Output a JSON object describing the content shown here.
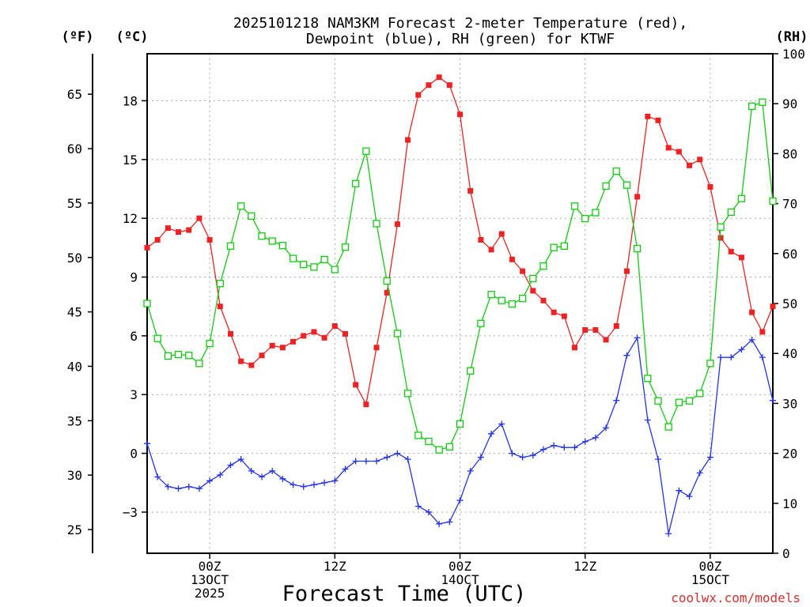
{
  "title": {
    "line1": "2025101218 NAM3KM Forecast 2-meter Temperature (red),",
    "line2": "Dewpoint (blue), RH (green) for KTWF"
  },
  "units": {
    "fahrenheit": "(ºF)",
    "celsius": "(ºC)",
    "rh": "(RH)"
  },
  "xlabel": "Forecast Time (UTC)",
  "credit": "coolwx.com/models",
  "colors": {
    "temperature": "#ee2222",
    "dewpoint": "#2233ee",
    "rh": "#11cc11",
    "grid": "#aaaaaa"
  },
  "chart_data": {
    "type": "line",
    "title": "2025101218 NAM3KM Forecast 2-meter Temperature (red), Dewpoint (blue), RH (green) for KTWF",
    "xlabel": "Forecast Time (UTC)",
    "x_unit": "hours since 2025-10-12 18Z",
    "xlim": [
      0,
      60
    ],
    "x_ticks": [
      {
        "x": 6,
        "labels": [
          "00Z",
          "13OCT",
          "2025"
        ]
      },
      {
        "x": 18,
        "labels": [
          "12Z"
        ]
      },
      {
        "x": 30,
        "labels": [
          "00Z",
          "14OCT"
        ]
      },
      {
        "x": 42,
        "labels": [
          "12Z"
        ]
      },
      {
        "x": 54,
        "labels": [
          "00Z",
          "15OCT"
        ]
      }
    ],
    "y_celsius": {
      "label": "(ºC)",
      "lim": [
        -5.1,
        20.4
      ],
      "ticks": [
        -3,
        0,
        3,
        6,
        9,
        12,
        15,
        18
      ]
    },
    "y_fahrenheit": {
      "label": "(ºF)",
      "ticks": [
        25,
        30,
        35,
        40,
        45,
        50,
        55,
        60,
        65
      ]
    },
    "y_rh": {
      "label": "(RH)",
      "lim": [
        0,
        100
      ],
      "ticks": [
        0,
        10,
        20,
        30,
        40,
        50,
        60,
        70,
        80,
        90,
        100
      ]
    },
    "series": [
      {
        "name": "Temperature",
        "unit": "C",
        "color": "red",
        "marker": "filled-square",
        "x": [
          0,
          1,
          2,
          3,
          4,
          5,
          6,
          7,
          8,
          9,
          10,
          11,
          12,
          13,
          14,
          15,
          16,
          17,
          18,
          19,
          20,
          21,
          22,
          23,
          24,
          25,
          26,
          27,
          28,
          29,
          30,
          31,
          32,
          33,
          34,
          35,
          36,
          37,
          38,
          39,
          40,
          41,
          42,
          43,
          44,
          45,
          46,
          47,
          48,
          49,
          50,
          51,
          52,
          53,
          54,
          55,
          56,
          57,
          58,
          59,
          60
        ],
        "values": [
          10.5,
          10.9,
          11.5,
          11.3,
          11.4,
          12.0,
          10.9,
          7.5,
          6.1,
          4.7,
          4.5,
          5.0,
          5.5,
          5.4,
          5.7,
          6.0,
          6.2,
          5.9,
          6.5,
          6.1,
          3.5,
          2.5,
          5.4,
          8.2,
          11.7,
          16.0,
          18.3,
          18.8,
          19.2,
          18.8,
          17.3,
          13.4,
          10.9,
          10.4,
          11.2,
          9.9,
          9.3,
          8.3,
          7.8,
          7.2,
          7.0,
          5.4,
          6.3,
          6.3,
          5.8,
          6.5,
          9.3,
          13.1,
          17.2,
          17.0,
          15.6,
          15.4,
          14.7,
          15.0,
          13.6,
          11.0,
          10.3,
          10.0,
          7.2,
          6.2,
          7.5
        ]
      },
      {
        "name": "Dewpoint",
        "unit": "C",
        "color": "blue",
        "marker": "plus",
        "x": [
          0,
          1,
          2,
          3,
          4,
          5,
          6,
          7,
          8,
          9,
          10,
          11,
          12,
          13,
          14,
          15,
          16,
          17,
          18,
          19,
          20,
          21,
          22,
          23,
          24,
          25,
          26,
          27,
          28,
          29,
          30,
          31,
          32,
          33,
          34,
          35,
          36,
          37,
          38,
          39,
          40,
          41,
          42,
          43,
          44,
          45,
          46,
          47,
          48,
          49,
          50,
          51,
          52,
          53,
          54,
          55,
          56,
          57,
          58,
          59,
          60
        ],
        "values": [
          0.5,
          -1.2,
          -1.7,
          -1.8,
          -1.7,
          -1.8,
          -1.4,
          -1.1,
          -0.6,
          -0.3,
          -0.9,
          -1.2,
          -0.9,
          -1.3,
          -1.6,
          -1.7,
          -1.6,
          -1.5,
          -1.4,
          -0.8,
          -0.4,
          -0.4,
          -0.4,
          -0.2,
          0.0,
          -0.3,
          -2.7,
          -3.0,
          -3.6,
          -3.5,
          -2.4,
          -0.9,
          -0.2,
          1.0,
          1.5,
          0.0,
          -0.2,
          -0.1,
          0.2,
          0.4,
          0.3,
          0.3,
          0.6,
          0.8,
          1.3,
          2.7,
          5.0,
          5.9,
          1.7,
          -0.3,
          -4.1,
          -1.9,
          -2.2,
          -1.0,
          -0.2,
          4.9,
          4.9,
          5.3,
          5.8,
          4.9,
          2.7
        ]
      },
      {
        "name": "RH",
        "unit": "%",
        "color": "green",
        "marker": "open-square",
        "x": [
          0,
          1,
          2,
          3,
          4,
          5,
          6,
          7,
          8,
          9,
          10,
          11,
          12,
          13,
          14,
          15,
          16,
          17,
          18,
          19,
          20,
          21,
          22,
          23,
          24,
          25,
          26,
          27,
          28,
          29,
          30,
          31,
          32,
          33,
          34,
          35,
          36,
          37,
          38,
          39,
          40,
          41,
          42,
          43,
          44,
          45,
          46,
          47,
          48,
          49,
          50,
          51,
          52,
          53,
          54,
          55,
          56,
          57,
          58,
          59,
          60
        ],
        "values": [
          50.0,
          43.0,
          39.5,
          39.8,
          39.6,
          38.0,
          42.0,
          54.0,
          61.5,
          69.5,
          67.5,
          63.5,
          62.5,
          61.6,
          59.0,
          57.8,
          57.3,
          58.8,
          56.8,
          61.3,
          74.0,
          80.5,
          66.0,
          54.5,
          44.0,
          32.0,
          23.6,
          22.4,
          20.7,
          21.3,
          25.9,
          36.5,
          46.0,
          51.8,
          50.6,
          49.9,
          51.0,
          55.0,
          57.5,
          61.2,
          61.5,
          69.5,
          67.0,
          68.2,
          73.5,
          76.5,
          73.7,
          61.0,
          35.0,
          30.5,
          25.3,
          30.2,
          30.5,
          32.0,
          38.0,
          65.3,
          68.3,
          71.0,
          89.5,
          90.3,
          70.5
        ]
      }
    ]
  }
}
